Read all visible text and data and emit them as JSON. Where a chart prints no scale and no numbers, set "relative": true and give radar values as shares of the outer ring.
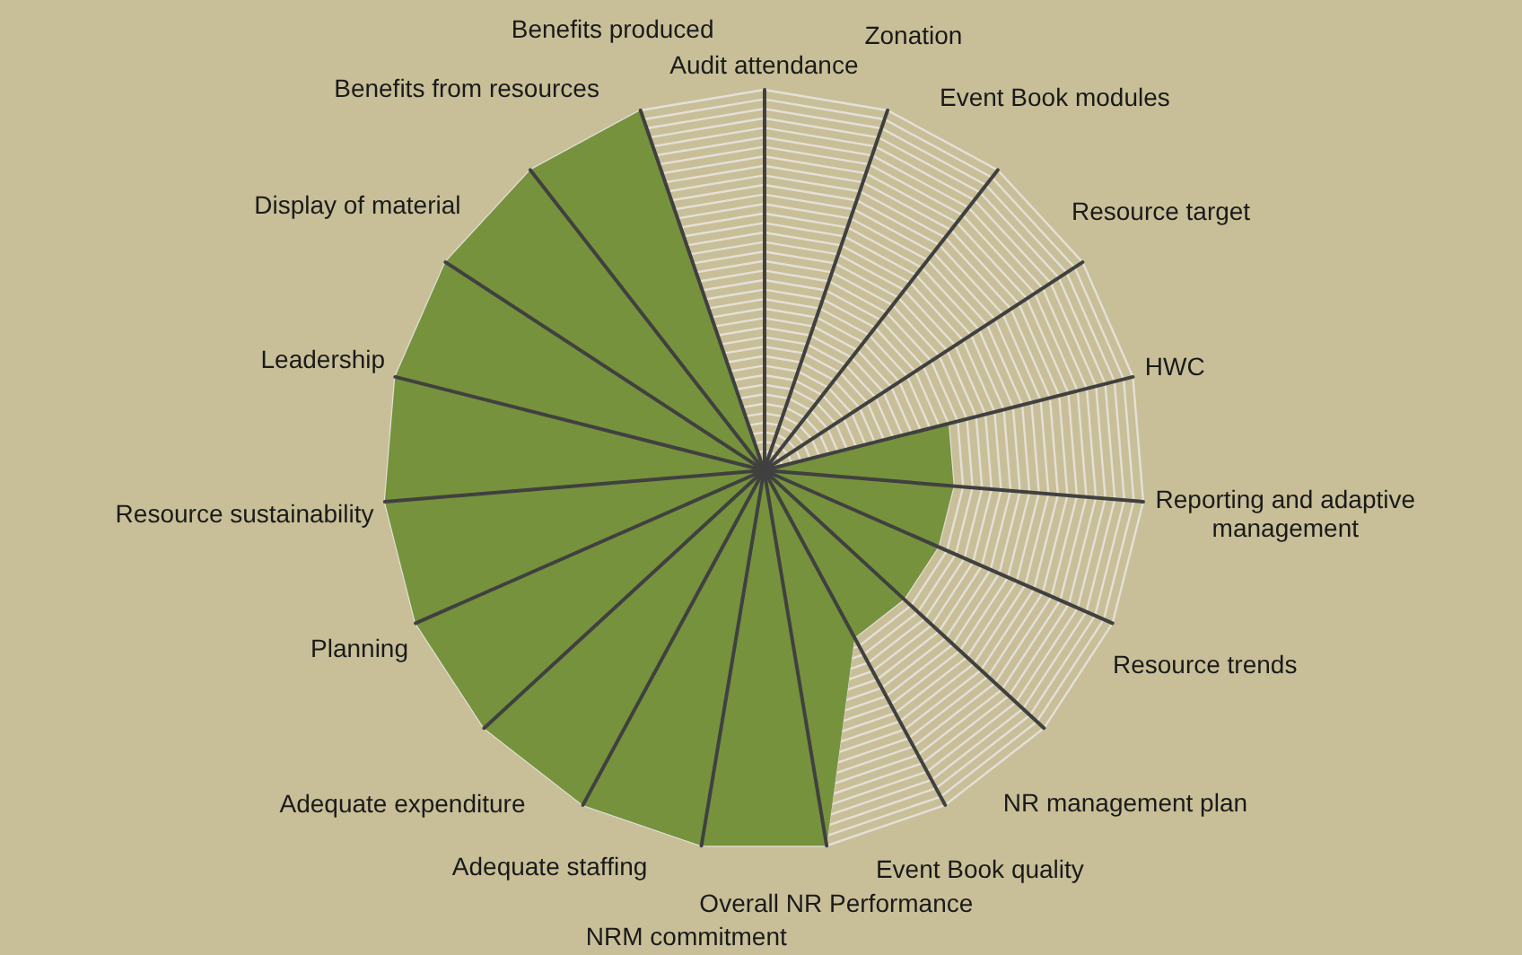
{
  "chart_data": {
    "type": "radar",
    "relative": true,
    "grid": true,
    "marker": "none",
    "categories": [
      "Audit attendance",
      "Zonation",
      "Event Book modules",
      "Resource target",
      "HWC",
      "Reporting and adaptive\nmanagement",
      "Resource trends",
      "NR management plan",
      "Event Book quality",
      "Overall NR Performance",
      "NRM commitment",
      "Adequate staffing",
      "Adequate expenditure",
      "Planning",
      "Resource sustainability",
      "Leadership",
      "Display of material",
      "Benefits from resources",
      "Benefits produced"
    ],
    "series": [
      {
        "color": "#76923c",
        "values": [
          0,
          0,
          0,
          0,
          0.5,
          0.5,
          0.5,
          0.5,
          0.5,
          1,
          1,
          1,
          1,
          1,
          1,
          1,
          1,
          1,
          1
        ]
      }
    ]
  }
}
